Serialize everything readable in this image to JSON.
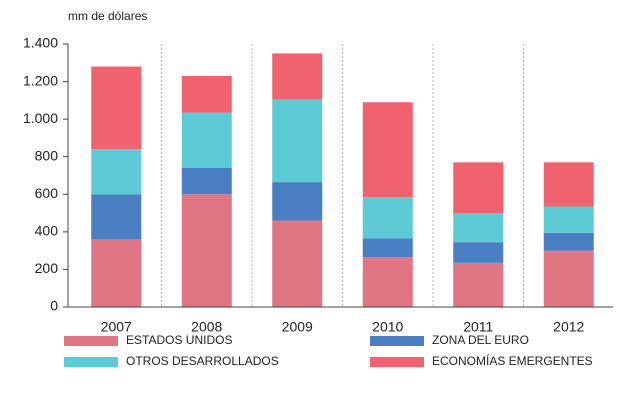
{
  "chart_data": {
    "type": "stacked_bar",
    "axis_title": "mm de dólares",
    "categories": [
      "2007",
      "2008",
      "2009",
      "2010",
      "2011",
      "2012"
    ],
    "series": [
      {
        "name": "ESTADOS UNIDOS",
        "color": "#e07584",
        "values": [
          360,
          600,
          460,
          265,
          235,
          300
        ]
      },
      {
        "name": "ZONA DEL EURO",
        "color": "#4a7fc4",
        "values": [
          240,
          140,
          205,
          100,
          110,
          95
        ]
      },
      {
        "name": "OTROS DESARROLLADOS",
        "color": "#5ecad5",
        "values": [
          240,
          295,
          440,
          220,
          155,
          140
        ]
      },
      {
        "name": "ECONOMÍAS EMERGENTES",
        "color": "#f0626f",
        "values": [
          440,
          195,
          245,
          505,
          270,
          235
        ]
      }
    ],
    "ylim": [
      0,
      1400
    ],
    "yticks": [
      0,
      200,
      400,
      600,
      800,
      {
        "value": 1000,
        "label": "1.000"
      },
      {
        "value": 1200,
        "label": "1.200"
      },
      {
        "value": 1400,
        "label": "1.400"
      }
    ]
  }
}
